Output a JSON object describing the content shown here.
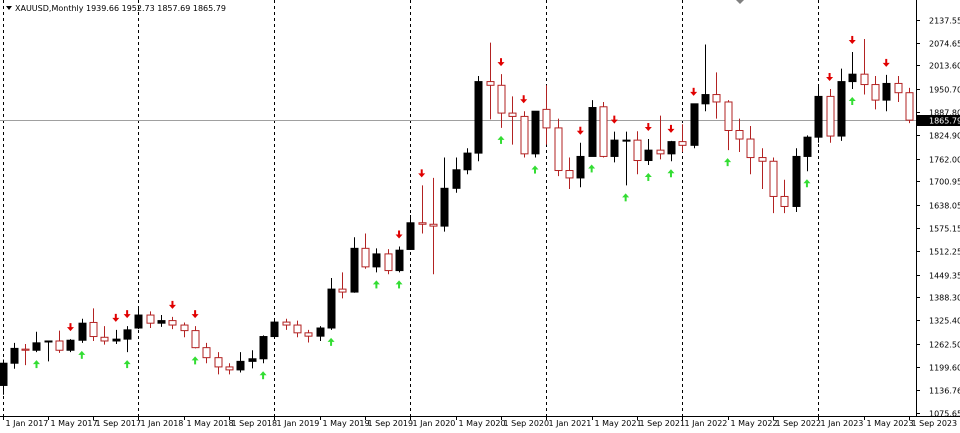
{
  "header": {
    "symbol": "XAUUSD,Monthly",
    "ohlc": "1939.66 1952.73 1857.69 1865.79"
  },
  "current_price": {
    "label": "1865.79",
    "value": 1865.79
  },
  "chart_data": {
    "type": "candlestick",
    "ylim": [
      1075.65,
      2160
    ],
    "y_ticks": [
      1075.65,
      1136.76,
      1199.6,
      1262.5,
      1325.4,
      1388.3,
      1449.35,
      1512.25,
      1575.15,
      1638.05,
      1700.95,
      1762.0,
      1824.9,
      1887.8,
      1950.7,
      2013.6,
      2074.65,
      2137.55
    ],
    "y_tick_labels": [
      "1075.65",
      "1136.76",
      "1199.60",
      "1262.50",
      "1325.40",
      "1388.30",
      "1449.35",
      "1512.25",
      "1575.15",
      "1638.05",
      "1700.95",
      "1762.00",
      "1824.90",
      "1887.80",
      "1950.70",
      "2013.60",
      "2074.65",
      "2137.55"
    ],
    "x_labels": [
      {
        "index": 0,
        "label": "1 Jan 2017"
      },
      {
        "index": 4,
        "label": "1 May 2017"
      },
      {
        "index": 8,
        "label": "1 Sep 2017"
      },
      {
        "index": 12,
        "label": "1 Jan 2018"
      },
      {
        "index": 16,
        "label": "1 May 2018"
      },
      {
        "index": 20,
        "label": "1 Sep 2018"
      },
      {
        "index": 24,
        "label": "1 Jan 2019"
      },
      {
        "index": 28,
        "label": "1 May 2019"
      },
      {
        "index": 32,
        "label": "1 Sep 2019"
      },
      {
        "index": 36,
        "label": "1 Jan 2020"
      },
      {
        "index": 40,
        "label": "1 May 2020"
      },
      {
        "index": 44,
        "label": "1 Sep 2020"
      },
      {
        "index": 48,
        "label": "1 Jan 2021"
      },
      {
        "index": 52,
        "label": "1 May 2021"
      },
      {
        "index": 56,
        "label": "1 Sep 2021"
      },
      {
        "index": 60,
        "label": "1 Jan 2022"
      },
      {
        "index": 64,
        "label": "1 May 2022"
      },
      {
        "index": 68,
        "label": "1 Sep 2022"
      },
      {
        "index": 72,
        "label": "1 Jan 2023"
      },
      {
        "index": 76,
        "label": "1 May 2023"
      },
      {
        "index": 80,
        "label": "1 Sep 2023"
      }
    ],
    "year_separators": [
      0,
      12,
      24,
      36,
      48,
      60,
      72
    ],
    "candles": [
      {
        "o": 1150,
        "h": 1220,
        "l": 1125,
        "c": 1210
      },
      {
        "o": 1210,
        "h": 1265,
        "l": 1195,
        "c": 1250
      },
      {
        "o": 1248,
        "h": 1262,
        "l": 1205,
        "c": 1245
      },
      {
        "o": 1245,
        "h": 1295,
        "l": 1240,
        "c": 1265
      },
      {
        "o": 1268,
        "h": 1270,
        "l": 1215,
        "c": 1270
      },
      {
        "o": 1270,
        "h": 1298,
        "l": 1238,
        "c": 1245
      },
      {
        "o": 1245,
        "h": 1275,
        "l": 1240,
        "c": 1272
      },
      {
        "o": 1272,
        "h": 1330,
        "l": 1265,
        "c": 1318
      },
      {
        "o": 1320,
        "h": 1358,
        "l": 1270,
        "c": 1282
      },
      {
        "o": 1280,
        "h": 1310,
        "l": 1260,
        "c": 1270
      },
      {
        "o": 1270,
        "h": 1300,
        "l": 1262,
        "c": 1275
      },
      {
        "o": 1275,
        "h": 1310,
        "l": 1240,
        "c": 1300
      },
      {
        "o": 1305,
        "h": 1362,
        "l": 1302,
        "c": 1340
      },
      {
        "o": 1340,
        "h": 1350,
        "l": 1305,
        "c": 1318
      },
      {
        "o": 1318,
        "h": 1340,
        "l": 1308,
        "c": 1325
      },
      {
        "o": 1325,
        "h": 1335,
        "l": 1302,
        "c": 1313
      },
      {
        "o": 1313,
        "h": 1320,
        "l": 1280,
        "c": 1298
      },
      {
        "o": 1298,
        "h": 1310,
        "l": 1250,
        "c": 1252
      },
      {
        "o": 1252,
        "h": 1265,
        "l": 1210,
        "c": 1225
      },
      {
        "o": 1225,
        "h": 1240,
        "l": 1180,
        "c": 1200
      },
      {
        "o": 1200,
        "h": 1210,
        "l": 1180,
        "c": 1192
      },
      {
        "o": 1192,
        "h": 1240,
        "l": 1185,
        "c": 1215
      },
      {
        "o": 1215,
        "h": 1245,
        "l": 1196,
        "c": 1222
      },
      {
        "o": 1222,
        "h": 1285,
        "l": 1210,
        "c": 1282
      },
      {
        "o": 1282,
        "h": 1328,
        "l": 1280,
        "c": 1321
      },
      {
        "o": 1321,
        "h": 1330,
        "l": 1300,
        "c": 1313
      },
      {
        "o": 1313,
        "h": 1325,
        "l": 1280,
        "c": 1292
      },
      {
        "o": 1292,
        "h": 1300,
        "l": 1266,
        "c": 1283
      },
      {
        "o": 1283,
        "h": 1310,
        "l": 1270,
        "c": 1305
      },
      {
        "o": 1305,
        "h": 1440,
        "l": 1300,
        "c": 1410
      },
      {
        "o": 1410,
        "h": 1455,
        "l": 1385,
        "c": 1402
      },
      {
        "o": 1402,
        "h": 1550,
        "l": 1400,
        "c": 1520
      },
      {
        "o": 1520,
        "h": 1560,
        "l": 1465,
        "c": 1470
      },
      {
        "o": 1470,
        "h": 1520,
        "l": 1455,
        "c": 1505
      },
      {
        "o": 1505,
        "h": 1518,
        "l": 1450,
        "c": 1460
      },
      {
        "o": 1460,
        "h": 1525,
        "l": 1455,
        "c": 1515
      },
      {
        "o": 1517,
        "h": 1610,
        "l": 1516,
        "c": 1589
      },
      {
        "o": 1589,
        "h": 1690,
        "l": 1560,
        "c": 1585
      },
      {
        "o": 1585,
        "h": 1710,
        "l": 1450,
        "c": 1580
      },
      {
        "o": 1580,
        "h": 1765,
        "l": 1565,
        "c": 1682
      },
      {
        "o": 1682,
        "h": 1765,
        "l": 1670,
        "c": 1732
      },
      {
        "o": 1732,
        "h": 1790,
        "l": 1720,
        "c": 1777
      },
      {
        "o": 1777,
        "h": 1985,
        "l": 1755,
        "c": 1970
      },
      {
        "o": 1970,
        "h": 2075,
        "l": 1868,
        "c": 1960
      },
      {
        "o": 1960,
        "h": 1990,
        "l": 1845,
        "c": 1885
      },
      {
        "o": 1885,
        "h": 1930,
        "l": 1800,
        "c": 1876
      },
      {
        "o": 1876,
        "h": 1890,
        "l": 1765,
        "c": 1775
      },
      {
        "o": 1775,
        "h": 1880,
        "l": 1765,
        "c": 1890
      },
      {
        "o": 1895,
        "h": 1960,
        "l": 1800,
        "c": 1845
      },
      {
        "o": 1845,
        "h": 1870,
        "l": 1715,
        "c": 1730
      },
      {
        "o": 1730,
        "h": 1765,
        "l": 1680,
        "c": 1710
      },
      {
        "o": 1710,
        "h": 1805,
        "l": 1685,
        "c": 1768
      },
      {
        "o": 1768,
        "h": 1920,
        "l": 1768,
        "c": 1900
      },
      {
        "o": 1902,
        "h": 1915,
        "l": 1765,
        "c": 1768
      },
      {
        "o": 1768,
        "h": 1835,
        "l": 1752,
        "c": 1812
      },
      {
        "o": 1812,
        "h": 1835,
        "l": 1690,
        "c": 1812
      },
      {
        "o": 1812,
        "h": 1836,
        "l": 1720,
        "c": 1757
      },
      {
        "o": 1757,
        "h": 1815,
        "l": 1745,
        "c": 1785
      },
      {
        "o": 1785,
        "h": 1878,
        "l": 1760,
        "c": 1775
      },
      {
        "o": 1775,
        "h": 1810,
        "l": 1755,
        "c": 1808
      },
      {
        "o": 1808,
        "h": 1855,
        "l": 1780,
        "c": 1798
      },
      {
        "o": 1798,
        "h": 1910,
        "l": 1790,
        "c": 1910
      },
      {
        "o": 1910,
        "h": 2070,
        "l": 1890,
        "c": 1935
      },
      {
        "o": 1935,
        "h": 1995,
        "l": 1870,
        "c": 1915
      },
      {
        "o": 1915,
        "h": 1920,
        "l": 1785,
        "c": 1838
      },
      {
        "o": 1838,
        "h": 1870,
        "l": 1780,
        "c": 1815
      },
      {
        "o": 1815,
        "h": 1850,
        "l": 1720,
        "c": 1765
      },
      {
        "o": 1765,
        "h": 1790,
        "l": 1680,
        "c": 1755
      },
      {
        "o": 1755,
        "h": 1765,
        "l": 1615,
        "c": 1660
      },
      {
        "o": 1660,
        "h": 1705,
        "l": 1615,
        "c": 1633
      },
      {
        "o": 1633,
        "h": 1790,
        "l": 1618,
        "c": 1768
      },
      {
        "o": 1768,
        "h": 1825,
        "l": 1728,
        "c": 1820
      },
      {
        "o": 1820,
        "h": 1960,
        "l": 1805,
        "c": 1930
      },
      {
        "o": 1930,
        "h": 1950,
        "l": 1805,
        "c": 1823
      },
      {
        "o": 1823,
        "h": 2005,
        "l": 1810,
        "c": 1970
      },
      {
        "o": 1970,
        "h": 2050,
        "l": 1950,
        "c": 1990
      },
      {
        "o": 1990,
        "h": 2085,
        "l": 1935,
        "c": 1962
      },
      {
        "o": 1962,
        "h": 1985,
        "l": 1895,
        "c": 1920
      },
      {
        "o": 1920,
        "h": 1988,
        "l": 1890,
        "c": 1965
      },
      {
        "o": 1965,
        "h": 1985,
        "l": 1915,
        "c": 1940
      },
      {
        "o": 1940,
        "h": 1953,
        "l": 1858,
        "c": 1866
      }
    ],
    "arrows_down": [
      6,
      10,
      11,
      15,
      17,
      35,
      37,
      44,
      46,
      51,
      54,
      57,
      59,
      61,
      73,
      75,
      78
    ],
    "arrows_up": [
      3,
      7,
      11,
      17,
      23,
      29,
      33,
      35,
      44,
      47,
      52,
      55,
      57,
      59,
      64,
      71,
      75
    ]
  }
}
